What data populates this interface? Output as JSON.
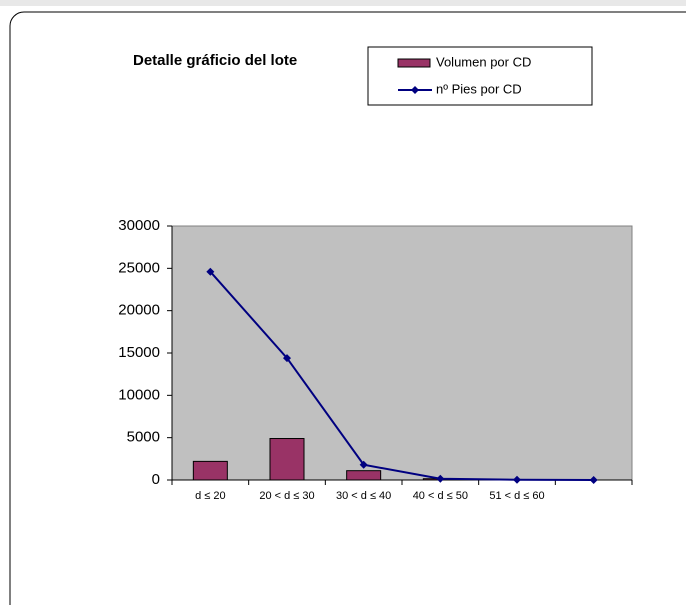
{
  "chart_data": {
    "type": "bar",
    "title": "Detalle gráficio del lote",
    "categories": [
      "d ≤ 20",
      "20 < d ≤ 30",
      "30 < d ≤ 40",
      "40 < d ≤ 50",
      "51 < d ≤ 60",
      null
    ],
    "series": [
      {
        "name": "Volumen por CD",
        "type": "bar",
        "color": "#993366",
        "values": [
          2200,
          4900,
          1100,
          150,
          30,
          0
        ]
      },
      {
        "name": "nº Pies por CD",
        "type": "line",
        "color": "#000080",
        "values": [
          24600,
          14400,
          1800,
          150,
          30,
          0
        ]
      }
    ],
    "ylim": [
      0,
      30000
    ],
    "yticks": [
      0,
      5000,
      10000,
      15000,
      20000,
      25000,
      30000
    ],
    "plot_background": "#c0c0c0",
    "grid": false,
    "legend": "top-right"
  }
}
